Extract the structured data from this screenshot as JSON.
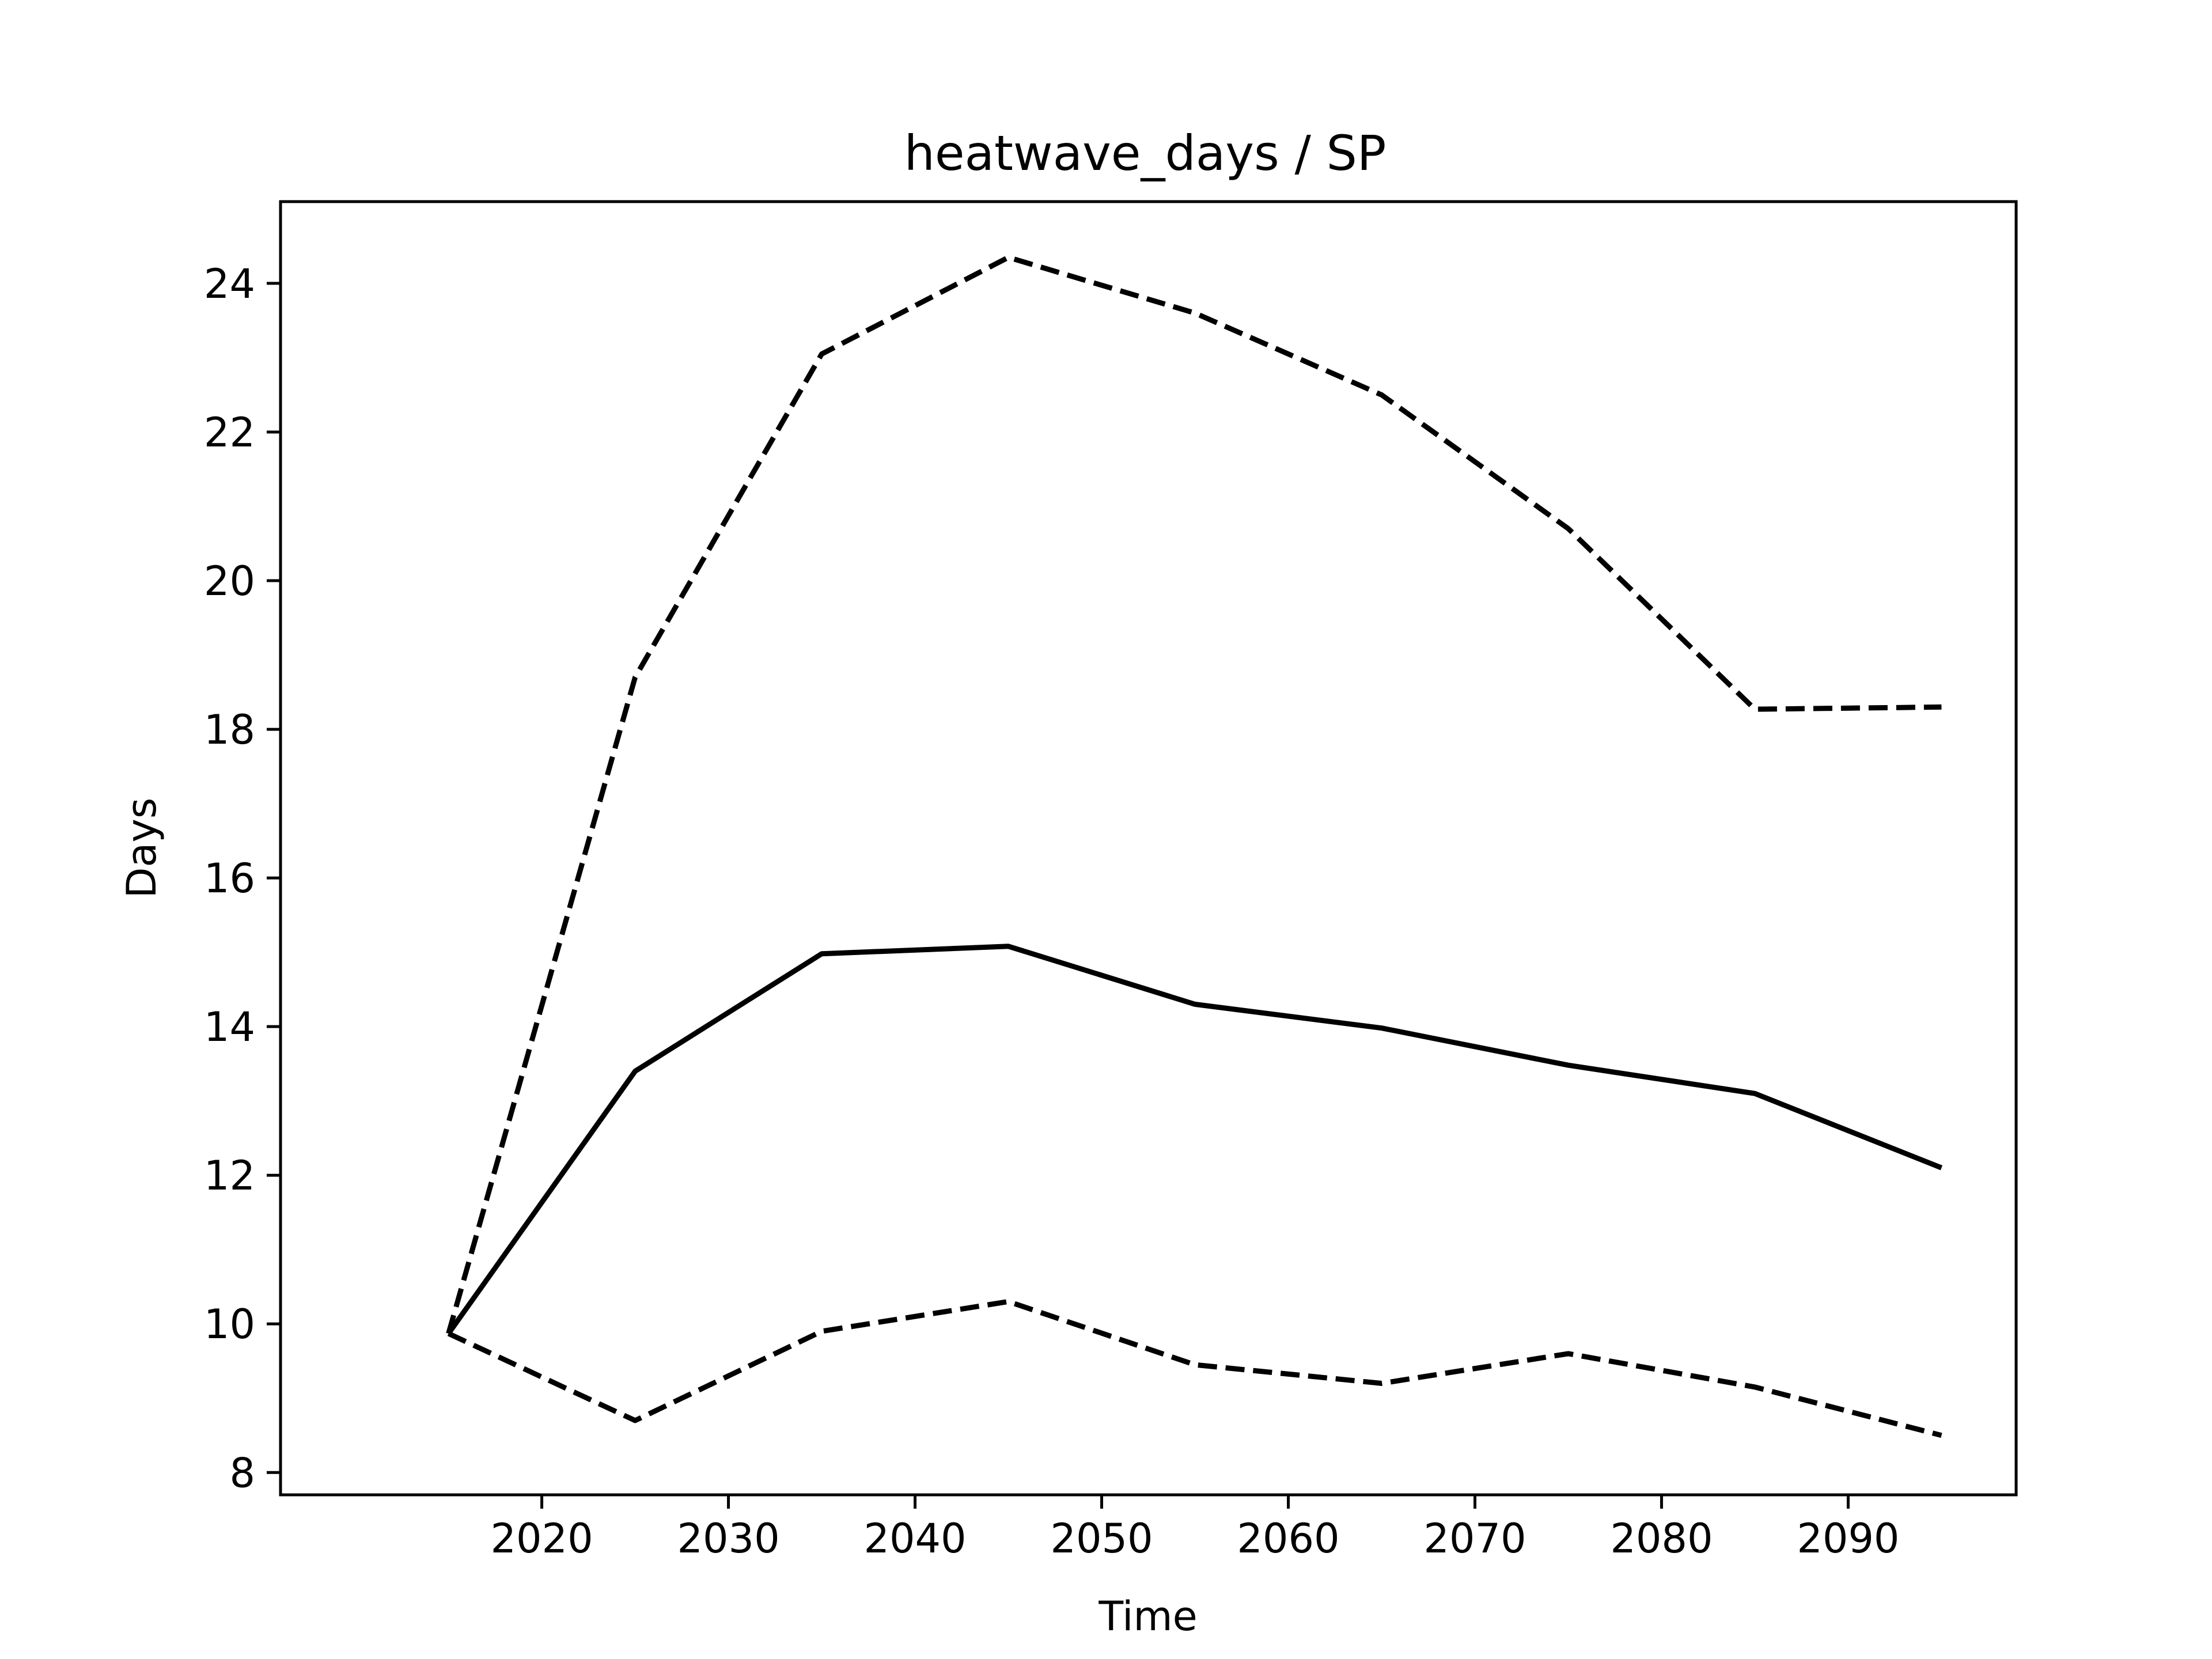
{
  "chart_data": {
    "type": "line",
    "title": "heatwave_days / SP",
    "xlabel": "Time",
    "ylabel": "Days",
    "x": [
      2015,
      2025,
      2035,
      2045,
      2055,
      2065,
      2075,
      2085,
      2095
    ],
    "xlim": [
      2006,
      2099
    ],
    "ylim": [
      7.7,
      25.1
    ],
    "xticks": [
      2020,
      2030,
      2040,
      2050,
      2060,
      2070,
      2080,
      2090
    ],
    "yticks": [
      8,
      10,
      12,
      14,
      16,
      18,
      20,
      22,
      24
    ],
    "grid": false,
    "legend": "none",
    "series": [
      {
        "style": "dashed",
        "color": "#000000",
        "values": [
          9.87,
          18.7,
          23.05,
          24.35,
          23.6,
          22.5,
          20.7,
          18.27,
          18.3
        ]
      },
      {
        "style": "solid",
        "color": "#000000",
        "values": [
          9.87,
          13.4,
          14.98,
          15.08,
          14.3,
          13.98,
          13.48,
          13.1,
          12.1
        ]
      },
      {
        "style": "dashed",
        "color": "#000000",
        "values": [
          9.87,
          8.7,
          9.9,
          10.3,
          9.45,
          9.2,
          9.6,
          9.15,
          8.5
        ]
      }
    ]
  }
}
